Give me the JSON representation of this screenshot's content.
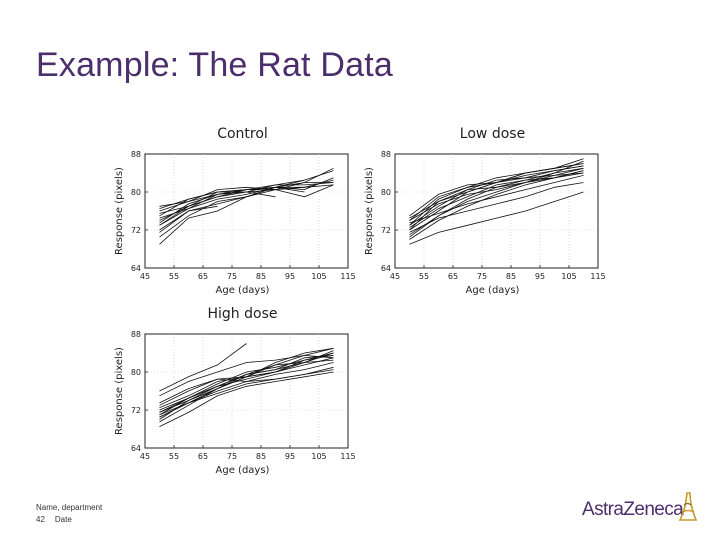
{
  "slide": {
    "title": "Example: The Rat Data",
    "footer": {
      "name_department": "Name, department",
      "page_number": "42",
      "date": "Date"
    },
    "logo_text": "AstraZeneca",
    "logo_icon": "astrazeneca-symbol-icon"
  },
  "colors": {
    "title": "#4b2e6b",
    "lines": "#111111",
    "logo_icon": "#c49a2c"
  },
  "chart_data": [
    {
      "type": "line",
      "title": "Control",
      "xlabel": "Age (days)",
      "ylabel": "Response (pixels)",
      "xlim": [
        45,
        115
      ],
      "ylim": [
        64,
        88
      ],
      "xticks": [
        45,
        55,
        65,
        75,
        85,
        95,
        105,
        115
      ],
      "xticklabels": [
        "45",
        "55",
        "65",
        "75",
        "85",
        "95",
        "105",
        "115"
      ],
      "yticks": [
        64,
        72,
        80,
        88
      ],
      "yticklabels": [
        "64",
        "72",
        "80",
        "88"
      ],
      "grid": true,
      "series": [
        {
          "x": [
            50,
            60,
            70,
            80,
            90,
            100,
            110
          ],
          "y": [
            76,
            78,
            80.5,
            81,
            80.5,
            82,
            85
          ]
        },
        {
          "x": [
            50,
            60,
            70,
            80,
            90,
            100,
            110
          ],
          "y": [
            75,
            78.5,
            80,
            80,
            80.5,
            81,
            82.5
          ]
        },
        {
          "x": [
            50,
            60,
            70,
            80,
            90,
            100,
            110
          ],
          "y": [
            74,
            77,
            79,
            80.5,
            81,
            82,
            82
          ]
        },
        {
          "x": [
            50,
            60,
            70,
            80,
            90,
            100,
            110
          ],
          "y": [
            73,
            76.5,
            78.5,
            79.5,
            81,
            80.5,
            83
          ]
        },
        {
          "x": [
            50,
            60,
            70,
            80,
            90
          ],
          "y": [
            76.5,
            78.5,
            80,
            80.5,
            80.5
          ]
        },
        {
          "x": [
            50,
            60,
            70,
            80,
            90,
            100
          ],
          "y": [
            72,
            76,
            77.5,
            79,
            81,
            80
          ]
        },
        {
          "x": [
            50,
            60,
            70,
            80,
            90,
            100,
            110
          ],
          "y": [
            70.5,
            75,
            78,
            79,
            81,
            81,
            81.5
          ]
        },
        {
          "x": [
            50,
            60,
            70,
            80,
            90,
            100,
            110
          ],
          "y": [
            69,
            74.5,
            76,
            79,
            80.5,
            79,
            81.5
          ]
        },
        {
          "x": [
            50,
            60,
            70,
            80
          ],
          "y": [
            75.5,
            77,
            80,
            80.5
          ]
        },
        {
          "x": [
            50,
            60,
            70,
            80,
            90
          ],
          "y": [
            73.5,
            77.5,
            79.5,
            80,
            79
          ]
        },
        {
          "x": [
            50,
            60,
            70
          ],
          "y": [
            71.5,
            76,
            77
          ]
        },
        {
          "x": [
            50,
            60,
            70,
            80,
            90,
            100,
            110
          ],
          "y": [
            73,
            77,
            79,
            80,
            81.5,
            81.5,
            82
          ]
        },
        {
          "x": [
            50,
            60,
            70,
            80,
            90,
            100
          ],
          "y": [
            77,
            78,
            79.5,
            80.5,
            81.5,
            82.5
          ]
        },
        {
          "x": [
            50,
            60,
            70,
            80,
            90,
            100,
            110
          ],
          "y": [
            74.5,
            76.5,
            79.5,
            80.5,
            81,
            82.5,
            84.5
          ]
        }
      ]
    },
    {
      "type": "line",
      "title": "Low dose",
      "xlabel": "Age (days)",
      "ylabel": "Response (pixels)",
      "xlim": [
        45,
        115
      ],
      "ylim": [
        64,
        88
      ],
      "xticks": [
        45,
        55,
        65,
        75,
        85,
        95,
        105,
        115
      ],
      "xticklabels": [
        "45",
        "55",
        "65",
        "75",
        "85",
        "95",
        "105",
        "115"
      ],
      "yticks": [
        64,
        72,
        80,
        88
      ],
      "yticklabels": [
        "64",
        "72",
        "80",
        "88"
      ],
      "grid": true,
      "series": [
        {
          "x": [
            50,
            60,
            70,
            80,
            90,
            100,
            110
          ],
          "y": [
            72,
            78,
            80,
            82,
            84,
            85,
            86
          ]
        },
        {
          "x": [
            50,
            60,
            70,
            80,
            90,
            100,
            110
          ],
          "y": [
            74,
            79,
            81,
            82,
            83,
            84.5,
            85.5
          ]
        },
        {
          "x": [
            50,
            60,
            70,
            80,
            90,
            100,
            110
          ],
          "y": [
            73,
            77,
            80.5,
            82.5,
            83,
            83.5,
            85
          ]
        },
        {
          "x": [
            50,
            60,
            70,
            80,
            90,
            100,
            110
          ],
          "y": [
            75,
            79.5,
            81.5,
            82,
            84,
            85,
            86
          ]
        },
        {
          "x": [
            50,
            60,
            70,
            80,
            90,
            100,
            110
          ],
          "y": [
            71,
            75,
            78,
            80,
            82,
            83.5,
            84
          ]
        },
        {
          "x": [
            50,
            60,
            70,
            80,
            90,
            100,
            110
          ],
          "y": [
            70,
            74,
            77,
            79.5,
            81.5,
            83,
            84.5
          ]
        },
        {
          "x": [
            50,
            60,
            70,
            80,
            90,
            100,
            110
          ],
          "y": [
            72.5,
            76.5,
            79,
            81.5,
            82.5,
            83,
            84
          ]
        },
        {
          "x": [
            50,
            60,
            70,
            80,
            90,
            100,
            110
          ],
          "y": [
            74.5,
            78,
            80.5,
            81,
            82.5,
            84,
            85
          ]
        },
        {
          "x": [
            50,
            60,
            70,
            80,
            90,
            100,
            110
          ],
          "y": [
            73.5,
            75.5,
            77.5,
            79,
            80.5,
            82,
            83.5
          ]
        },
        {
          "x": [
            50,
            60,
            70,
            80,
            90,
            100,
            110
          ],
          "y": [
            71.5,
            74.5,
            76,
            77.5,
            79,
            81,
            82
          ]
        },
        {
          "x": [
            50,
            60,
            70,
            80,
            90,
            100,
            110
          ],
          "y": [
            69,
            71.5,
            73,
            74.5,
            76,
            78,
            80
          ]
        },
        {
          "x": [
            50,
            60,
            70,
            80,
            90,
            100,
            110
          ],
          "y": [
            72,
            76,
            80,
            82,
            83.5,
            84.5,
            85.5
          ]
        },
        {
          "x": [
            50,
            60,
            70,
            80,
            90,
            100,
            110
          ],
          "y": [
            74,
            77.5,
            79.5,
            80.5,
            82,
            84,
            86.5
          ]
        },
        {
          "x": [
            50,
            60,
            70,
            80,
            90,
            100,
            110
          ],
          "y": [
            70.5,
            75,
            78.5,
            81,
            82,
            83,
            84.5
          ]
        },
        {
          "x": [
            50,
            60,
            70,
            80,
            90,
            100,
            110
          ],
          "y": [
            73,
            78.5,
            81,
            83,
            84,
            85,
            87
          ]
        }
      ]
    },
    {
      "type": "line",
      "title": "High dose",
      "xlabel": "Age (days)",
      "ylabel": "Response (pixels)",
      "xlim": [
        45,
        115
      ],
      "ylim": [
        64,
        88
      ],
      "xticks": [
        45,
        55,
        65,
        75,
        85,
        95,
        105,
        115
      ],
      "xticklabels": [
        "45",
        "55",
        "65",
        "75",
        "85",
        "95",
        "105",
        "115"
      ],
      "yticks": [
        64,
        72,
        80,
        88
      ],
      "yticklabels": [
        "64",
        "72",
        "80",
        "88"
      ],
      "grid": true,
      "series": [
        {
          "x": [
            50,
            60,
            70,
            80,
            90,
            100,
            110
          ],
          "y": [
            73,
            76,
            78.5,
            79,
            82,
            84,
            85
          ]
        },
        {
          "x": [
            50,
            60,
            70,
            80,
            90,
            100,
            110
          ],
          "y": [
            71.5,
            74.5,
            77,
            79.5,
            80.5,
            82,
            84
          ]
        },
        {
          "x": [
            50,
            60,
            70,
            80,
            90,
            100,
            110
          ],
          "y": [
            70.5,
            73.5,
            76,
            78,
            79.5,
            80.5,
            82
          ]
        },
        {
          "x": [
            50,
            60,
            70,
            80,
            90,
            100,
            110
          ],
          "y": [
            72,
            74.5,
            77.5,
            80,
            81,
            82.5,
            83.5
          ]
        },
        {
          "x": [
            50,
            60,
            70,
            80,
            90,
            100,
            110
          ],
          "y": [
            69.5,
            73,
            76.5,
            79,
            80,
            81.5,
            83
          ]
        },
        {
          "x": [
            50,
            60,
            70,
            80,
            90,
            100,
            110
          ],
          "y": [
            71,
            73.5,
            76.5,
            79.5,
            81.5,
            82,
            84.5
          ]
        },
        {
          "x": [
            50,
            60,
            70,
            80,
            90,
            100,
            110
          ],
          "y": [
            72.5,
            75,
            78,
            79,
            81.5,
            83.5,
            85
          ]
        },
        {
          "x": [
            50,
            60,
            70,
            80,
            90,
            100,
            110
          ],
          "y": [
            70,
            74,
            77,
            78.5,
            80,
            82,
            82.5
          ]
        },
        {
          "x": [
            50,
            60,
            70,
            80,
            90,
            100,
            110
          ],
          "y": [
            71,
            74.5,
            77,
            79.5,
            80.5,
            83,
            83.5
          ]
        },
        {
          "x": [
            50,
            60,
            70,
            80,
            90,
            100,
            110
          ],
          "y": [
            70.5,
            73.5,
            75.5,
            77.5,
            78.5,
            79.5,
            80.5
          ]
        },
        {
          "x": [
            50,
            60,
            70,
            80
          ],
          "y": [
            76,
            79,
            81.5,
            86
          ]
        },
        {
          "x": [
            50,
            60,
            70,
            80,
            90,
            100,
            110
          ],
          "y": [
            73.5,
            76.5,
            78.5,
            78,
            78.5,
            79.5,
            81
          ]
        },
        {
          "x": [
            50,
            60,
            70,
            80,
            90,
            100,
            110
          ],
          "y": [
            75,
            78,
            80,
            82,
            82.5,
            83.5,
            83
          ]
        },
        {
          "x": [
            50,
            60,
            70,
            80,
            90,
            100,
            110
          ],
          "y": [
            71.5,
            74,
            76.5,
            79,
            80,
            82.5,
            84
          ]
        },
        {
          "x": [
            50,
            60,
            70,
            80,
            90,
            100,
            110
          ],
          "y": [
            68.5,
            71.5,
            75,
            77,
            78,
            79,
            80
          ]
        }
      ]
    }
  ]
}
